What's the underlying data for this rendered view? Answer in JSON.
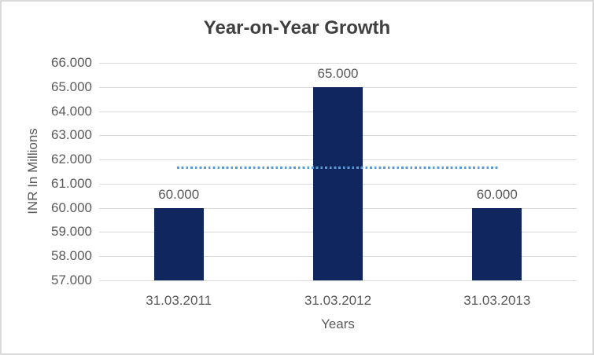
{
  "chart_data": {
    "type": "bar",
    "title": "Year-on-Year Growth",
    "xlabel": "Years",
    "ylabel": "INR In Millions",
    "categories": [
      "31.03.2011",
      "31.03.2012",
      "31.03.2013"
    ],
    "values": [
      60,
      65,
      60
    ],
    "data_labels": [
      "60.000",
      "65.000",
      "60.000"
    ],
    "y_ticks": [
      {
        "value": 57,
        "label": "57.000"
      },
      {
        "value": 58,
        "label": "58.000"
      },
      {
        "value": 59,
        "label": "59.000"
      },
      {
        "value": 60,
        "label": "60.000"
      },
      {
        "value": 61,
        "label": "61.000"
      },
      {
        "value": 62,
        "label": "62.000"
      },
      {
        "value": 63,
        "label": "63.000"
      },
      {
        "value": 64,
        "label": "64.000"
      },
      {
        "value": 65,
        "label": "65.000"
      },
      {
        "value": 66,
        "label": "66.000"
      }
    ],
    "ylim": [
      57,
      66
    ],
    "grid": "horizontal",
    "legend": "none",
    "trendline": {
      "type": "linear",
      "value": 61.667,
      "style": "dotted",
      "color": "#5b9bd5"
    },
    "colors": {
      "bar": "#10265f",
      "gridline": "#d9d9d9",
      "axis_line": "#d9d9d9",
      "title_text": "#404040",
      "label_text": "#595959",
      "border": "#d9d9d9",
      "background": "#ffffff"
    }
  }
}
